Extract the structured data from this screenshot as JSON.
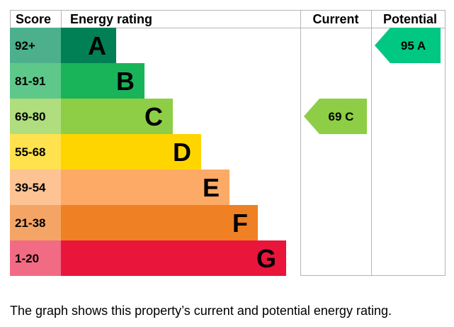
{
  "chart_data": {
    "type": "bar",
    "header": {
      "score": "Score",
      "rating": "Energy rating",
      "current": "Current",
      "potential": "Potential"
    },
    "bands": [
      {
        "score": "92+",
        "letter": "A",
        "color": "#008054",
        "score_bg": "#4cb08d"
      },
      {
        "score": "81-91",
        "letter": "B",
        "color": "#19b459",
        "score_bg": "#5ec88a"
      },
      {
        "score": "69-80",
        "letter": "C",
        "color": "#8dce46",
        "score_bg": "#b0dd7e"
      },
      {
        "score": "55-68",
        "letter": "D",
        "color": "#ffd500",
        "score_bg": "#ffe24d"
      },
      {
        "score": "39-54",
        "letter": "E",
        "color": "#fcaa65",
        "score_bg": "#fdc393"
      },
      {
        "score": "21-38",
        "letter": "F",
        "color": "#ef8023",
        "score_bg": "#f4a565"
      },
      {
        "score": "1-20",
        "letter": "G",
        "color": "#e9153b",
        "score_bg": "#f06b83"
      }
    ],
    "current": {
      "value": 69,
      "letter": "C",
      "label": "69  C",
      "color": "#8dce46"
    },
    "potential": {
      "value": 95,
      "letter": "A",
      "label": "95  A",
      "color": "#00c781"
    }
  },
  "caption": "The graph shows this property’s current and potential energy rating."
}
